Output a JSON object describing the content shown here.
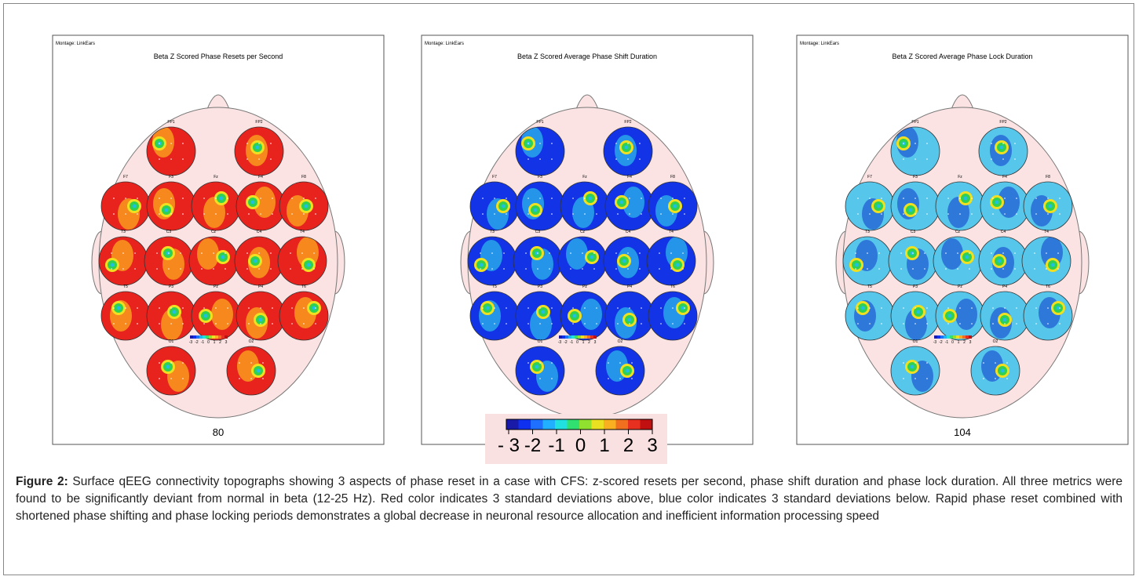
{
  "panels": [
    {
      "montage": "Montage:  LinkEars",
      "title": "Beta Z Scored Phase Resets per Second",
      "electrodes": [
        "FP1",
        "FP2",
        "F7",
        "F3",
        "Fz",
        "F4",
        "F8",
        "T3",
        "C3",
        "Cz",
        "C4",
        "T4",
        "T5",
        "P3",
        "Pz",
        "P4",
        "T6",
        "O1",
        "O2"
      ],
      "scale_labels": [
        "-3",
        "-2",
        "-1",
        "0",
        "1",
        "2",
        "3"
      ],
      "page_number": "80"
    },
    {
      "montage": "Montage:  LinkEars",
      "title": "Beta Z Scored Average Phase Shift Duration",
      "electrodes": [
        "FP1",
        "FP2",
        "F7",
        "F3",
        "Fz",
        "F4",
        "F8",
        "T3",
        "C3",
        "Cz",
        "C4",
        "T4",
        "T5",
        "P3",
        "Pz",
        "P4",
        "T6",
        "O1",
        "O2"
      ],
      "scale_labels": [
        "-3",
        "-2",
        "-1",
        "0",
        "1",
        "2",
        "3"
      ]
    },
    {
      "montage": "Montage:  LinkEars",
      "title": "Beta Z Scored Average Phase Lock Duration",
      "electrodes": [
        "FP1",
        "FP2",
        "F7",
        "F3",
        "Fz",
        "F4",
        "F8",
        "T3",
        "C3",
        "Cz",
        "C4",
        "T4",
        "T5",
        "P3",
        "Pz",
        "P4",
        "T6",
        "O1",
        "O2"
      ],
      "scale_labels": [
        "-3",
        "-2",
        "-1",
        "0",
        "1",
        "2",
        "3"
      ],
      "page_number": "104"
    }
  ],
  "colorbar": {
    "labels": [
      "- 3",
      "-2",
      "-1",
      "0",
      "1",
      "2",
      "3"
    ]
  },
  "caption": {
    "label": "Figure 2:",
    "text": " Surface qEEG connectivity topographs showing 3 aspects of phase reset in a case with CFS: z-scored resets per second, phase shift duration and phase lock duration. All three metrics were found to be significantly deviant from normal in beta (12-25 Hz). Red color indicates 3 standard deviations above, blue color indicates 3 standard deviations below. Rapid phase reset combined with shortened phase shifting and phase locking periods demonstrates a global decrease in neuronal resource allocation and inefficient information processing speed"
  }
}
